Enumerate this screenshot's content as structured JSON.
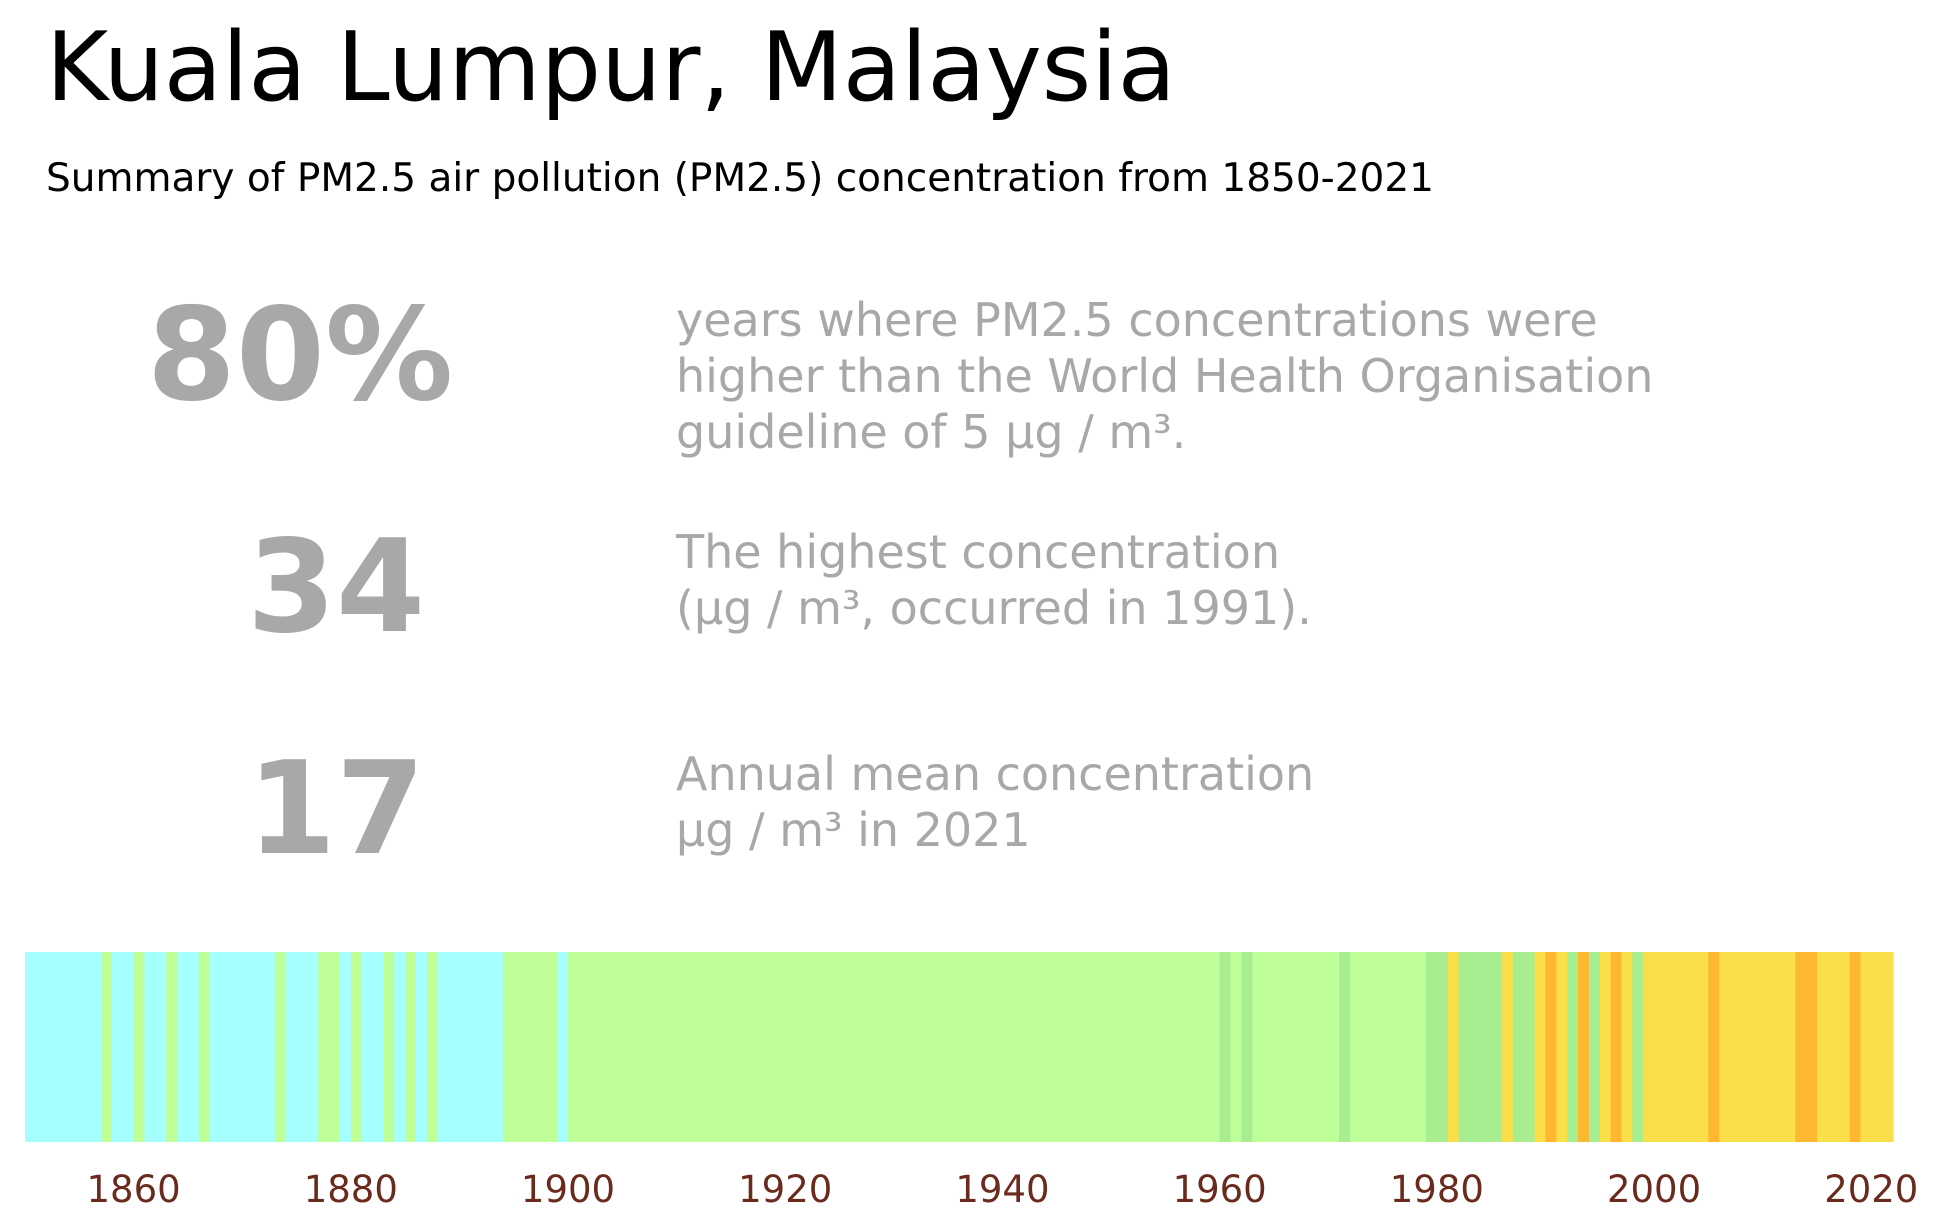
{
  "title": "Kuala Lumpur, Malaysia",
  "subtitle": "Summary of PM2.5 air pollution (PM2.5) concentration from 1850-2021",
  "stats": [
    {
      "value": "80%",
      "description": "years where PM2.5 concentrations were\nhigher than the World Health Organisation\nguideline of 5 µg / m³."
    },
    {
      "value": "34",
      "description": "The highest concentration\n(µg / m³, occurred in 1991)."
    },
    {
      "value": "17",
      "description": "Annual mean concentration\nµg / m³ in 2021"
    }
  ],
  "colors": {
    "text_muted": "#a8a8a8",
    "tick_label": "#6b2a1e",
    "band_1_cyan": "#a6ffff",
    "band_2_lime": "#bfff99",
    "band_3_green": "#a8ee90",
    "band_4_yellow": "#fadf4b",
    "band_5_orange": "#fdb730"
  },
  "chart_data": {
    "type": "heatmap",
    "title": "",
    "xlabel": "",
    "ylabel": "",
    "xlim": [
      1850,
      2022
    ],
    "x_ticks": [
      1860,
      1880,
      1900,
      1920,
      1940,
      1960,
      1980,
      2000,
      2020
    ],
    "grid": false,
    "legend": "none",
    "segments": [
      {
        "start": 1850,
        "end": 1857,
        "color": "#a6ffff"
      },
      {
        "start": 1857,
        "end": 1858,
        "color": "#bfff99"
      },
      {
        "start": 1858,
        "end": 1860,
        "color": "#a6ffff"
      },
      {
        "start": 1860,
        "end": 1861,
        "color": "#bfff99"
      },
      {
        "start": 1861,
        "end": 1863,
        "color": "#a6ffff"
      },
      {
        "start": 1863,
        "end": 1864,
        "color": "#bfff99"
      },
      {
        "start": 1864,
        "end": 1866,
        "color": "#a6ffff"
      },
      {
        "start": 1866,
        "end": 1867,
        "color": "#bfff99"
      },
      {
        "start": 1867,
        "end": 1873,
        "color": "#a6ffff"
      },
      {
        "start": 1873,
        "end": 1874,
        "color": "#bfff99"
      },
      {
        "start": 1874,
        "end": 1877,
        "color": "#a6ffff"
      },
      {
        "start": 1877,
        "end": 1879,
        "color": "#bfff99"
      },
      {
        "start": 1879,
        "end": 1880,
        "color": "#a6ffff"
      },
      {
        "start": 1880,
        "end": 1881,
        "color": "#bfff99"
      },
      {
        "start": 1881,
        "end": 1883,
        "color": "#a6ffff"
      },
      {
        "start": 1883,
        "end": 1884,
        "color": "#bfff99"
      },
      {
        "start": 1884,
        "end": 1885,
        "color": "#a6ffff"
      },
      {
        "start": 1885,
        "end": 1886,
        "color": "#bfff99"
      },
      {
        "start": 1886,
        "end": 1887,
        "color": "#a6ffff"
      },
      {
        "start": 1887,
        "end": 1888,
        "color": "#bfff99"
      },
      {
        "start": 1888,
        "end": 1894,
        "color": "#a6ffff"
      },
      {
        "start": 1894,
        "end": 1899,
        "color": "#bfff99"
      },
      {
        "start": 1899,
        "end": 1900,
        "color": "#a6ffff"
      },
      {
        "start": 1900,
        "end": 1960,
        "color": "#bfff99"
      },
      {
        "start": 1960,
        "end": 1961,
        "color": "#a8ee90"
      },
      {
        "start": 1961,
        "end": 1962,
        "color": "#bfff99"
      },
      {
        "start": 1962,
        "end": 1963,
        "color": "#a8ee90"
      },
      {
        "start": 1963,
        "end": 1971,
        "color": "#bfff99"
      },
      {
        "start": 1971,
        "end": 1972,
        "color": "#a8ee90"
      },
      {
        "start": 1972,
        "end": 1979,
        "color": "#bfff99"
      },
      {
        "start": 1979,
        "end": 1981,
        "color": "#a8ee90"
      },
      {
        "start": 1981,
        "end": 1982,
        "color": "#fadf4b"
      },
      {
        "start": 1982,
        "end": 1986,
        "color": "#a8ee90"
      },
      {
        "start": 1986,
        "end": 1987,
        "color": "#fadf4b"
      },
      {
        "start": 1987,
        "end": 1989,
        "color": "#a8ee90"
      },
      {
        "start": 1989,
        "end": 1990,
        "color": "#fadf4b"
      },
      {
        "start": 1990,
        "end": 1991,
        "color": "#fdb730"
      },
      {
        "start": 1991,
        "end": 1992,
        "color": "#fadf4b"
      },
      {
        "start": 1992,
        "end": 1993,
        "color": "#a8ee90"
      },
      {
        "start": 1993,
        "end": 1994,
        "color": "#fdb730"
      },
      {
        "start": 1994,
        "end": 1995,
        "color": "#a8ee90"
      },
      {
        "start": 1995,
        "end": 1996,
        "color": "#fadf4b"
      },
      {
        "start": 1996,
        "end": 1997,
        "color": "#fdb730"
      },
      {
        "start": 1997,
        "end": 1998,
        "color": "#fadf4b"
      },
      {
        "start": 1998,
        "end": 1999,
        "color": "#a8ee90"
      },
      {
        "start": 1999,
        "end": 2005,
        "color": "#fadf4b"
      },
      {
        "start": 2005,
        "end": 2006,
        "color": "#fdb730"
      },
      {
        "start": 2006,
        "end": 2013,
        "color": "#fadf4b"
      },
      {
        "start": 2013,
        "end": 2015,
        "color": "#fdb730"
      },
      {
        "start": 2015,
        "end": 2018,
        "color": "#fadf4b"
      },
      {
        "start": 2018,
        "end": 2019,
        "color": "#fdb730"
      },
      {
        "start": 2019,
        "end": 2022,
        "color": "#fadf4b"
      }
    ]
  }
}
